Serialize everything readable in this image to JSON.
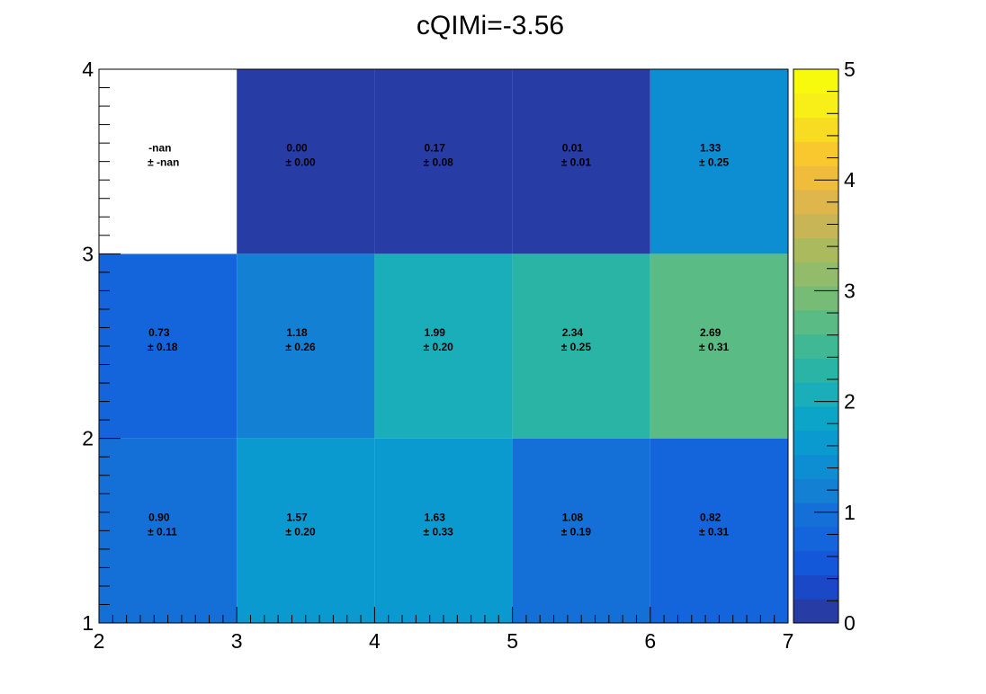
{
  "chart_data": {
    "type": "heatmap",
    "title": "cQIMi=-3.56",
    "xlabel": "",
    "ylabel": "",
    "x_edges": [
      2,
      3,
      4,
      5,
      6,
      7
    ],
    "y_edges": [
      1,
      2,
      3,
      4
    ],
    "x_ticks": [
      "2",
      "3",
      "4",
      "5",
      "6",
      "7"
    ],
    "y_ticks": [
      "1",
      "2",
      "3",
      "4"
    ],
    "xlim": [
      2,
      7
    ],
    "ylim": [
      1,
      4
    ],
    "zlim": [
      0,
      5
    ],
    "z_ticks": [
      "0",
      "1",
      "2",
      "3",
      "4",
      "5"
    ],
    "cells": [
      [
        {
          "value": 0.9,
          "label": "0.90",
          "error": "± 0.11"
        },
        {
          "value": 1.57,
          "label": "1.57",
          "error": "± 0.20"
        },
        {
          "value": 1.63,
          "label": "1.63",
          "error": "± 0.33"
        },
        {
          "value": 1.08,
          "label": "1.08",
          "error": "± 0.19"
        },
        {
          "value": 0.82,
          "label": "0.82",
          "error": "± 0.31"
        }
      ],
      [
        {
          "value": 0.73,
          "label": "0.73",
          "error": "± 0.18"
        },
        {
          "value": 1.18,
          "label": "1.18",
          "error": "± 0.26"
        },
        {
          "value": 1.99,
          "label": "1.99",
          "error": "± 0.20"
        },
        {
          "value": 2.34,
          "label": "2.34",
          "error": "± 0.25"
        },
        {
          "value": 2.69,
          "label": "2.69",
          "error": "± 0.31"
        }
      ],
      [
        {
          "value": null,
          "label": "-nan",
          "error": "± -nan"
        },
        {
          "value": 0.0,
          "label": "0.00",
          "error": "± 0.00"
        },
        {
          "value": 0.17,
          "label": "0.17",
          "error": "± 0.08"
        },
        {
          "value": 0.01,
          "label": "0.01",
          "error": "± 0.01"
        },
        {
          "value": 1.33,
          "label": "1.33",
          "error": "± 0.25"
        }
      ]
    ],
    "palette": [
      "#283ca6",
      "#1a48c6",
      "#1258d8",
      "#1464db",
      "#1470d6",
      "#1480d3",
      "#0e8ed2",
      "#0a9ad0",
      "#0ca5c8",
      "#1aadba",
      "#2ab4a6",
      "#40b894",
      "#5abc84",
      "#76bc76",
      "#92bc6a",
      "#acba5e",
      "#c8b656",
      "#deb64c",
      "#f0bc3c",
      "#f8c82e",
      "#f8dc22",
      "#f8ee18",
      "#f8fa0e"
    ],
    "empty_color": "#ffffff"
  }
}
